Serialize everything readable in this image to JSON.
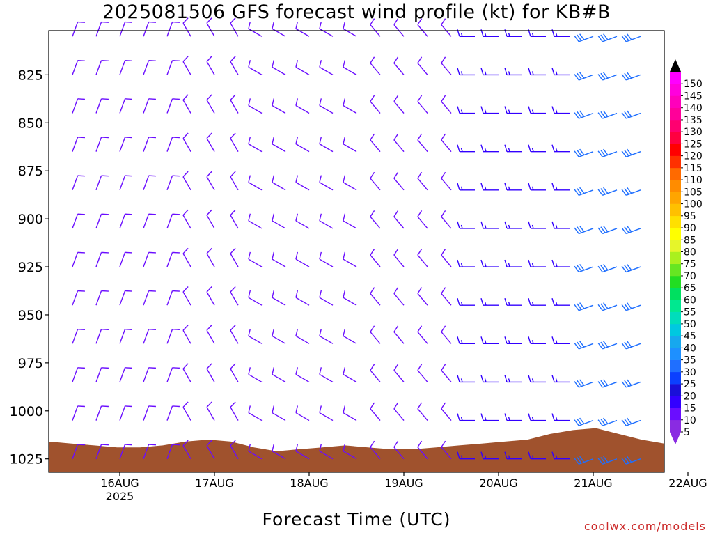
{
  "title": "2025081506 GFS forecast wind profile (kt) for KB#B",
  "xaxis_title": "Forecast Time (UTC)",
  "credit": "coolwx.com/models",
  "colors": {
    "terrain": "#a0522d",
    "axes": "#000000"
  },
  "chart_data": {
    "type": "wind-barb-time-height",
    "y_axis": {
      "label": "",
      "scale": "pressure",
      "inverted": true,
      "range_hpa": [
        1032,
        802
      ],
      "ticks": [
        825,
        850,
        875,
        900,
        925,
        950,
        975,
        1000,
        1025
      ]
    },
    "x_axis": {
      "range_hours": [
        6,
        162
      ],
      "ticks": [
        {
          "label": "16AUG",
          "year": "2025",
          "hour": 24
        },
        {
          "label": "17AUG",
          "year": "",
          "hour": 48
        },
        {
          "label": "18AUG",
          "year": "",
          "hour": 72
        },
        {
          "label": "19AUG",
          "year": "",
          "hour": 96
        },
        {
          "label": "20AUG",
          "year": "",
          "hour": 120
        },
        {
          "label": "21AUG",
          "year": "",
          "hour": 144
        },
        {
          "label": "22AUG",
          "year": "",
          "hour": 168
        }
      ]
    },
    "colorbar": {
      "unit": "kt",
      "levels": [
        5,
        10,
        15,
        20,
        25,
        30,
        35,
        40,
        45,
        50,
        55,
        60,
        65,
        70,
        75,
        80,
        85,
        90,
        95,
        100,
        105,
        110,
        115,
        120,
        125,
        130,
        135,
        140,
        145,
        150
      ],
      "colors": [
        "#8a2be2",
        "#6a0dff",
        "#3300ff",
        "#1a10d8",
        "#0b40ff",
        "#1f6fff",
        "#1e90ff",
        "#17a8ee",
        "#00c8e0",
        "#00ddbb",
        "#00e890",
        "#00e060",
        "#22dd22",
        "#66e622",
        "#aaf01e",
        "#e6f52a",
        "#ffff00",
        "#ffe000",
        "#ffc000",
        "#ffa500",
        "#ff8c00",
        "#ff6a00",
        "#ff3000",
        "#ff0000",
        "#ff0040",
        "#ff0070",
        "#ff0099",
        "#ff00bb",
        "#ff00dd",
        "#ff00ff"
      ]
    },
    "levels_hpa": [
      805,
      825,
      845,
      865,
      885,
      905,
      925,
      945,
      965,
      985,
      1005,
      1025
    ],
    "barb_time_step_hours": 6,
    "segments": [
      {
        "from_hour": 6,
        "to_hour": 42,
        "direction_deg": 20,
        "speed_kt": 10
      },
      {
        "from_hour": 42,
        "to_hour": 60,
        "direction_deg": 330,
        "speed_kt": 10
      },
      {
        "from_hour": 60,
        "to_hour": 90,
        "direction_deg": 300,
        "speed_kt": 12
      },
      {
        "from_hour": 90,
        "to_hour": 114,
        "direction_deg": 320,
        "speed_kt": 10
      },
      {
        "from_hour": 114,
        "to_hour": 144,
        "direction_deg": 270,
        "speed_kt": 15
      },
      {
        "from_hour": 144,
        "to_hour": 162,
        "direction_deg": 250,
        "speed_kt": 30
      }
    ],
    "surface_pressure_hpa": [
      1016,
      1017,
      1018,
      1019,
      1019,
      1018,
      1016,
      1015,
      1016,
      1019,
      1021,
      1020,
      1019,
      1018,
      1019,
      1020,
      1020,
      1019,
      1018,
      1017,
      1016,
      1015,
      1012,
      1010,
      1009,
      1012,
      1015,
      1017
    ]
  }
}
